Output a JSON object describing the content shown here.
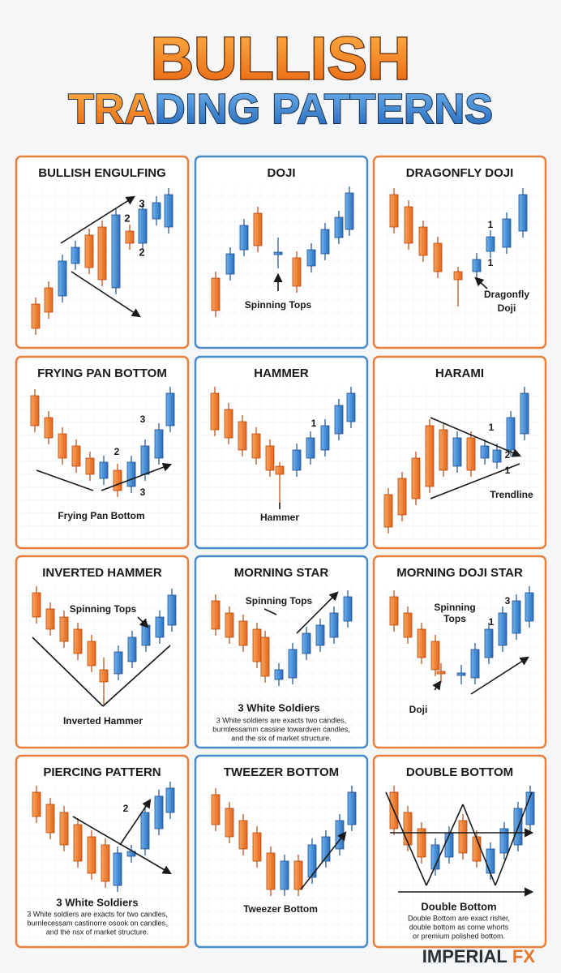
{
  "header": {
    "title_line1": "BULLISH",
    "title_line2": [
      "TRA",
      "DING PATTERNS"
    ]
  },
  "panels": [
    {
      "title": "BULLISH ENGULFING",
      "labels": [
        "3",
        "2",
        "2"
      ]
    },
    {
      "title": "DOJI",
      "labels": [
        "Spinning Tops"
      ]
    },
    {
      "title": "DRAGONFLY DOJI",
      "labels": [
        "1",
        "1",
        "Dragonfly",
        "Doji"
      ]
    },
    {
      "title": "FRYING PAN BOTTOM",
      "labels": [
        "3",
        "2",
        "3",
        "Frying Pan Bottom"
      ]
    },
    {
      "title": "HAMMER",
      "labels": [
        "1",
        "Hammer"
      ]
    },
    {
      "title": "HARAMI",
      "labels": [
        "1",
        "2",
        "1",
        "Trendline"
      ]
    },
    {
      "title": "INVERTED HAMMER",
      "labels": [
        "Spinning Tops",
        "Inverted Hammer"
      ]
    },
    {
      "title": "MORNING STAR",
      "labels": [
        "Spinning Tops",
        "3 White Soldiers",
        "3 White soldiers are exacts two candles,",
        "burmlessamm cassine towardven candles,",
        "and the six of market structure."
      ]
    },
    {
      "title": "MORNING DOJI STAR",
      "labels": [
        "Spinning",
        "Tops",
        "3",
        "1",
        "Doji"
      ]
    },
    {
      "title": "PIERCING PATTERN",
      "labels": [
        "2",
        "3 White Soldiers",
        "3 White soldiers are exacts for two candles,",
        "burnlecessam castinorre osook on candles,",
        "and the nsx of market structure."
      ]
    },
    {
      "title": "TWEEZER BOTTOM",
      "labels": [
        "Tweezer Bottom"
      ]
    },
    {
      "title": "DOUBLE BOTTOM",
      "labels": [
        "Double Bottom",
        "Double Bottom are exact risher,",
        "double bottom as come whorts",
        "or premium polished bottom."
      ]
    }
  ],
  "footer": {
    "brand": [
      "IMPERIAL",
      "FX"
    ]
  }
}
